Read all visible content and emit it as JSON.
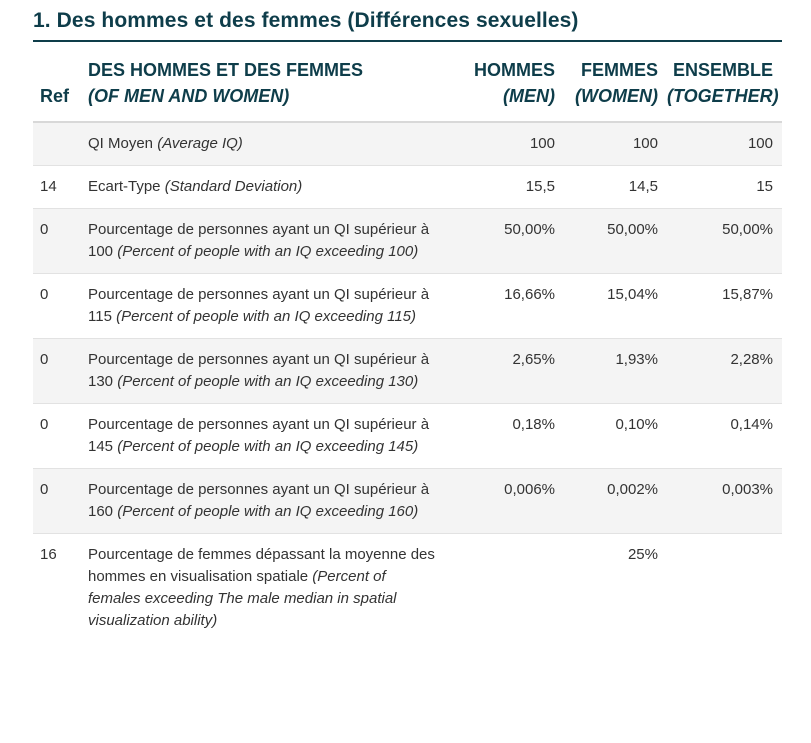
{
  "title": "1. Des hommes et des femmes (Différences sexuelles)",
  "colors": {
    "heading": "#0e3d4a",
    "stripe": "#f4f4f4",
    "text": "#333333"
  },
  "header": {
    "ref": "Ref",
    "label_fr": "DES HOMMES ET DES FEMMES",
    "label_en": "(OF MEN AND WOMEN)",
    "men_fr": "HOMMES",
    "men_en": "(MEN)",
    "women_fr": "FEMMES",
    "women_en": "(WOMEN)",
    "together_fr": "ENSEMBLE",
    "together_en": "(TOGETHER)"
  },
  "rows": [
    {
      "ref": "",
      "label_fr": "QI Moyen ",
      "label_en": "(Average IQ)",
      "men": "100",
      "women": "100",
      "together": "100"
    },
    {
      "ref": "14",
      "label_fr": "Ecart-Type ",
      "label_en": "(Standard Deviation)",
      "men": "15,5",
      "women": "14,5",
      "together": "15"
    },
    {
      "ref": "0",
      "label_fr": "Pourcentage de personnes ayant un QI supérieur à 100 ",
      "label_en": "(Percent of people with an IQ exceeding 100)",
      "men": "50,00%",
      "women": "50,00%",
      "together": "50,00%"
    },
    {
      "ref": "0",
      "label_fr": "Pourcentage de personnes ayant un QI supérieur à 115 ",
      "label_en": "(Percent of people with an IQ exceeding 115)",
      "men": "16,66%",
      "women": "15,04%",
      "together": "15,87%"
    },
    {
      "ref": "0",
      "label_fr": "Pourcentage de personnes ayant un QI supérieur à 130 ",
      "label_en": "(Percent of people with an IQ exceeding 130)",
      "men": "2,65%",
      "women": "1,93%",
      "together": "2,28%"
    },
    {
      "ref": "0",
      "label_fr": "Pourcentage de personnes ayant un QI supérieur à 145 ",
      "label_en": "(Percent of people with an IQ exceeding 145)",
      "men": "0,18%",
      "women": "0,10%",
      "together": "0,14%"
    },
    {
      "ref": "0",
      "label_fr": "Pourcentage de personnes ayant un QI supérieur à 160 ",
      "label_en": "(Percent of people with an IQ exceeding 160)",
      "men": "0,006%",
      "women": "0,002%",
      "together": "0,003%"
    },
    {
      "ref": "16",
      "label_fr": "Pourcentage de femmes dépassant la moyenne des hommes en visualisation spatiale ",
      "label_en": "(Percent of females exceeding The male median in spatial visualization ability)",
      "men": "",
      "women": "25%",
      "together": ""
    }
  ]
}
